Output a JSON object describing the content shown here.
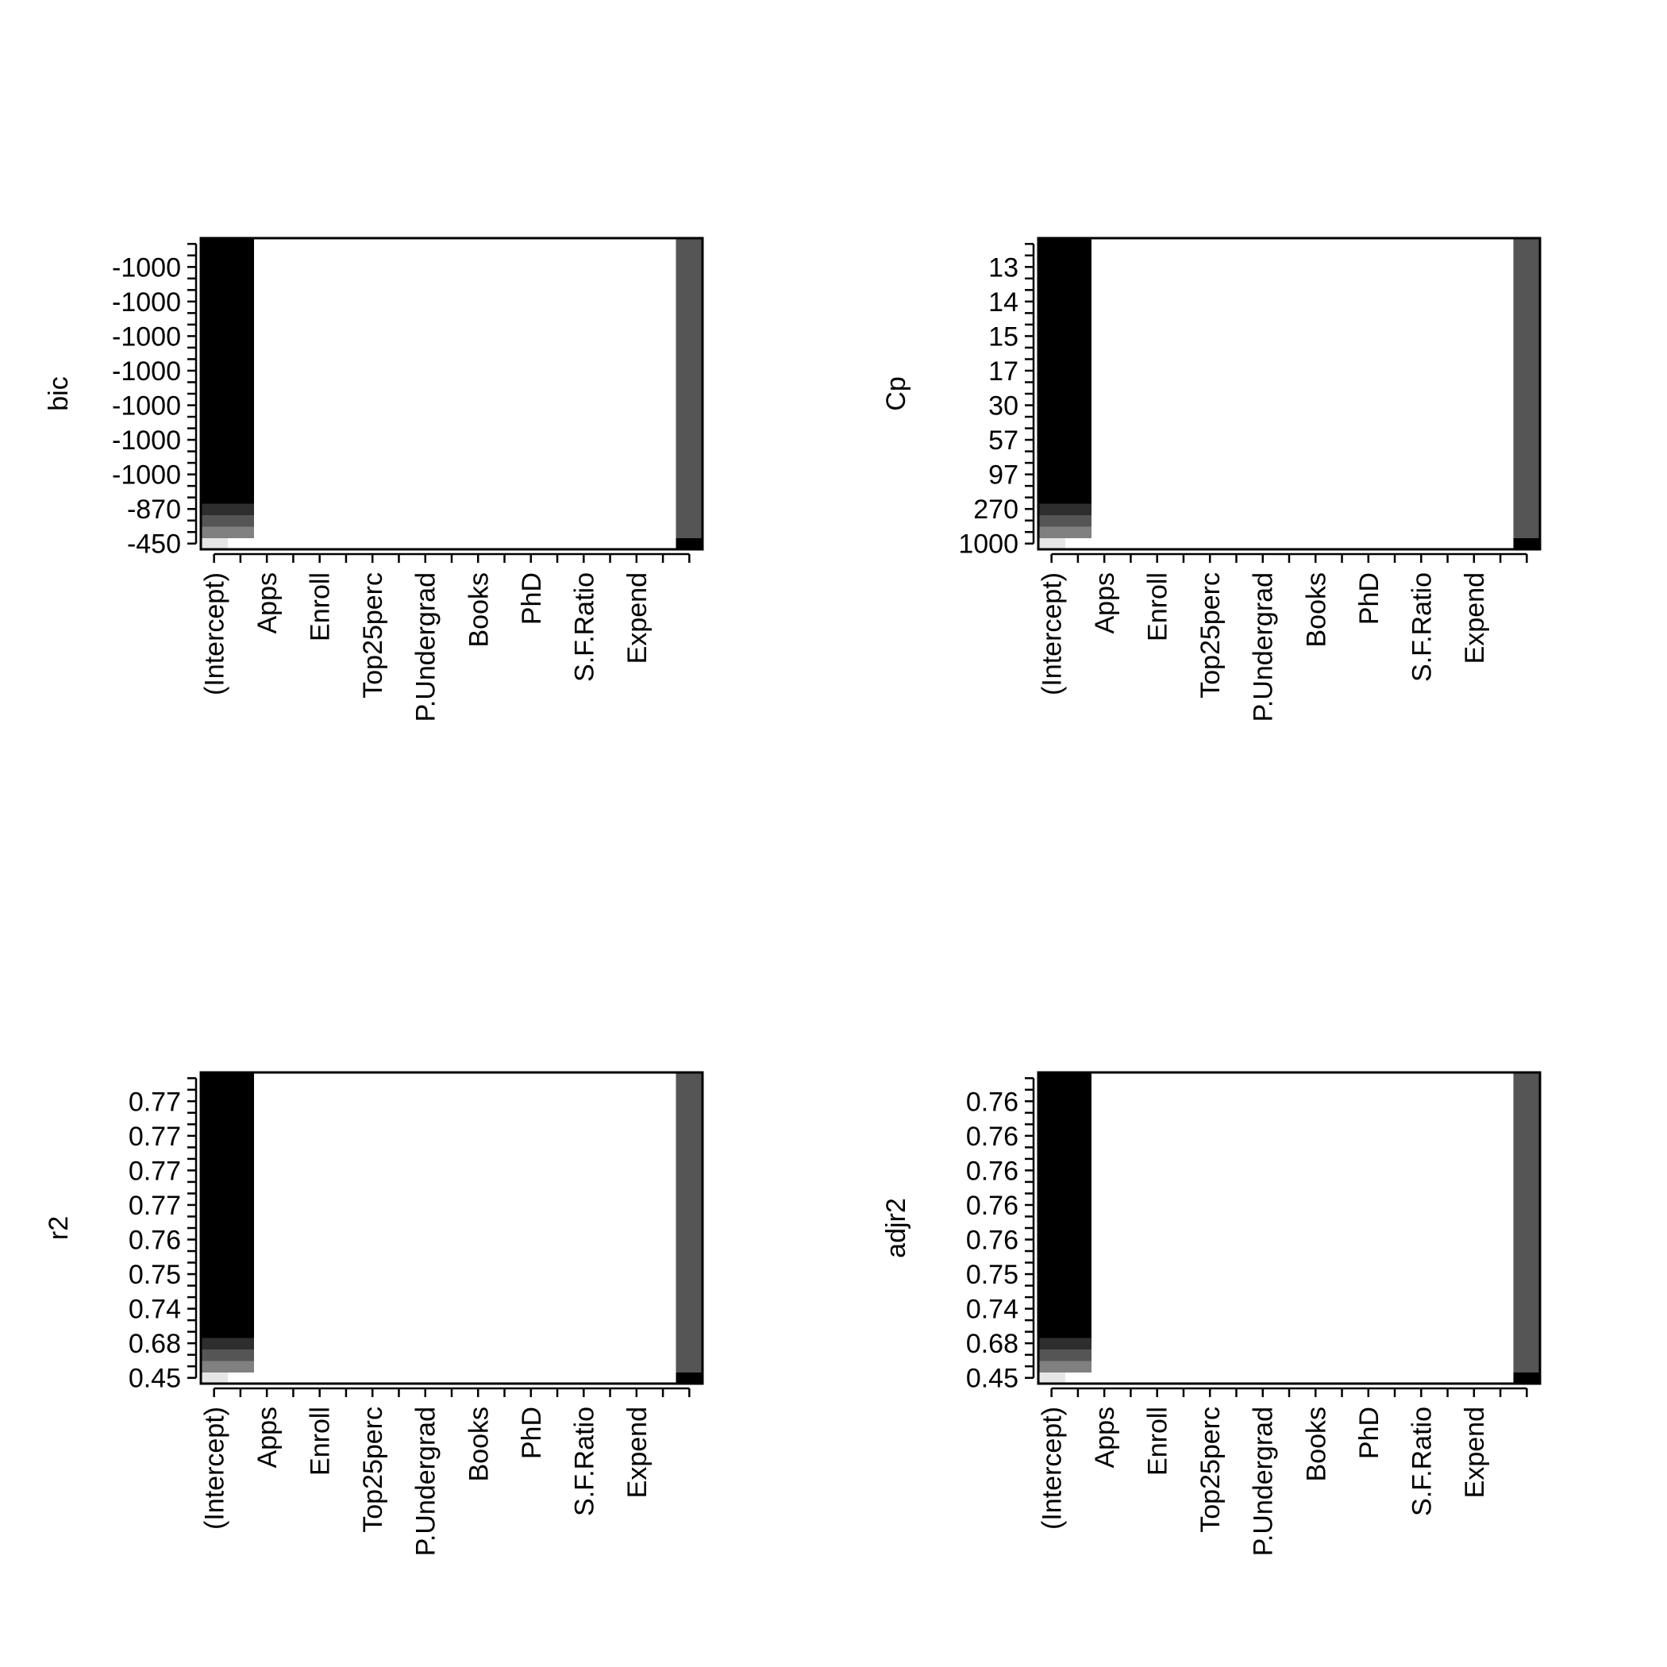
{
  "figure": {
    "background": "#ffffff"
  },
  "chart_data": [
    {
      "type": "heatmap",
      "ylabel": "bic",
      "ytick_labels": [
        "-450",
        "-870",
        "-1000",
        "-1000",
        "-1000",
        "-1000",
        "-1000",
        "-1000",
        "-1000"
      ],
      "xtick_labels": [
        "(Intercept)",
        "Apps",
        "Enroll",
        "Top25perc",
        "P.Undergrad",
        "Books",
        "PhD",
        "S.F.Ratio",
        "Expend"
      ],
      "grid": false,
      "shades": [
        "#ffffff",
        "#e6e6e6",
        "#808080",
        "#555555",
        "#2e2e2e",
        "#000000"
      ],
      "matrix": [
        "1000000000000000005",
        "2200000000000000003",
        "3300000000000000003",
        "4400000000000000003",
        "5500000000000000003",
        "5500000000000000003",
        "5500000000000000003",
        "5500000000000000003",
        "5500000000000000003",
        "5500000000000000003",
        "5500000000000000003",
        "5500000000000000003",
        "5500000000000000003",
        "5500000000000000003",
        "5500000000000000003",
        "5500000000000000003",
        "5500000000000000003",
        "5500000000000000003",
        "5500000000000000003",
        "5500000000000000003",
        "5500000000000000003",
        "5500000000000000003",
        "5500000000000000003",
        "5500000000000000003",
        "5500000000000000003",
        "5500000000000000003",
        "5500000000000000003"
      ]
    },
    {
      "type": "heatmap",
      "ylabel": "Cp",
      "ytick_labels": [
        "1000",
        "270",
        "97",
        "57",
        "30",
        "17",
        "15",
        "14",
        "13"
      ],
      "xtick_labels": [
        "(Intercept)",
        "Apps",
        "Enroll",
        "Top25perc",
        "P.Undergrad",
        "Books",
        "PhD",
        "S.F.Ratio",
        "Expend"
      ],
      "grid": false,
      "shades": [
        "#ffffff",
        "#e6e6e6",
        "#808080",
        "#555555",
        "#2e2e2e",
        "#000000"
      ],
      "matrix": [
        "1000000000000000005",
        "2200000000000000003",
        "3300000000000000003",
        "4400000000000000003",
        "5500000000000000003",
        "5500000000000000003",
        "5500000000000000003",
        "5500000000000000003",
        "5500000000000000003",
        "5500000000000000003",
        "5500000000000000003",
        "5500000000000000003",
        "5500000000000000003",
        "5500000000000000003",
        "5500000000000000003",
        "5500000000000000003",
        "5500000000000000003",
        "5500000000000000003",
        "5500000000000000003",
        "5500000000000000003",
        "5500000000000000003",
        "5500000000000000003",
        "5500000000000000003",
        "5500000000000000003",
        "5500000000000000003",
        "5500000000000000003",
        "5500000000000000003"
      ]
    },
    {
      "type": "heatmap",
      "ylabel": "r2",
      "ytick_labels": [
        "0.45",
        "0.68",
        "0.74",
        "0.75",
        "0.76",
        "0.77",
        "0.77",
        "0.77",
        "0.77"
      ],
      "xtick_labels": [
        "(Intercept)",
        "Apps",
        "Enroll",
        "Top25perc",
        "P.Undergrad",
        "Books",
        "PhD",
        "S.F.Ratio",
        "Expend"
      ],
      "grid": false,
      "shades": [
        "#ffffff",
        "#e6e6e6",
        "#808080",
        "#555555",
        "#2e2e2e",
        "#000000"
      ],
      "matrix": [
        "1000000000000000005",
        "2200000000000000003",
        "3300000000000000003",
        "4400000000000000003",
        "5500000000000000003",
        "5500000000000000003",
        "5500000000000000003",
        "5500000000000000003",
        "5500000000000000003",
        "5500000000000000003",
        "5500000000000000003",
        "5500000000000000003",
        "5500000000000000003",
        "5500000000000000003",
        "5500000000000000003",
        "5500000000000000003",
        "5500000000000000003",
        "5500000000000000003",
        "5500000000000000003",
        "5500000000000000003",
        "5500000000000000003",
        "5500000000000000003",
        "5500000000000000003",
        "5500000000000000003",
        "5500000000000000003",
        "5500000000000000003",
        "5500000000000000003"
      ]
    },
    {
      "type": "heatmap",
      "ylabel": "adjr2",
      "ytick_labels": [
        "0.45",
        "0.68",
        "0.74",
        "0.75",
        "0.76",
        "0.76",
        "0.76",
        "0.76",
        "0.76"
      ],
      "xtick_labels": [
        "(Intercept)",
        "Apps",
        "Enroll",
        "Top25perc",
        "P.Undergrad",
        "Books",
        "PhD",
        "S.F.Ratio",
        "Expend"
      ],
      "grid": false,
      "shades": [
        "#ffffff",
        "#e6e6e6",
        "#808080",
        "#555555",
        "#2e2e2e",
        "#000000"
      ],
      "matrix": [
        "1000000000000000005",
        "2200000000000000003",
        "3300000000000000003",
        "4400000000000000003",
        "5500000000000000003",
        "5500000000000000003",
        "5500000000000000003",
        "5500000000000000003",
        "5500000000000000003",
        "5500000000000000003",
        "5500000000000000003",
        "5500000000000000003",
        "5500000000000000003",
        "5500000000000000003",
        "5500000000000000003",
        "5500000000000000003",
        "5500000000000000003",
        "5500000000000000003",
        "5500000000000000003",
        "5500000000000000003",
        "5500000000000000003",
        "5500000000000000003",
        "5500000000000000003",
        "5500000000000000003",
        "5500000000000000003",
        "5500000000000000003",
        "5500000000000000003"
      ]
    }
  ]
}
